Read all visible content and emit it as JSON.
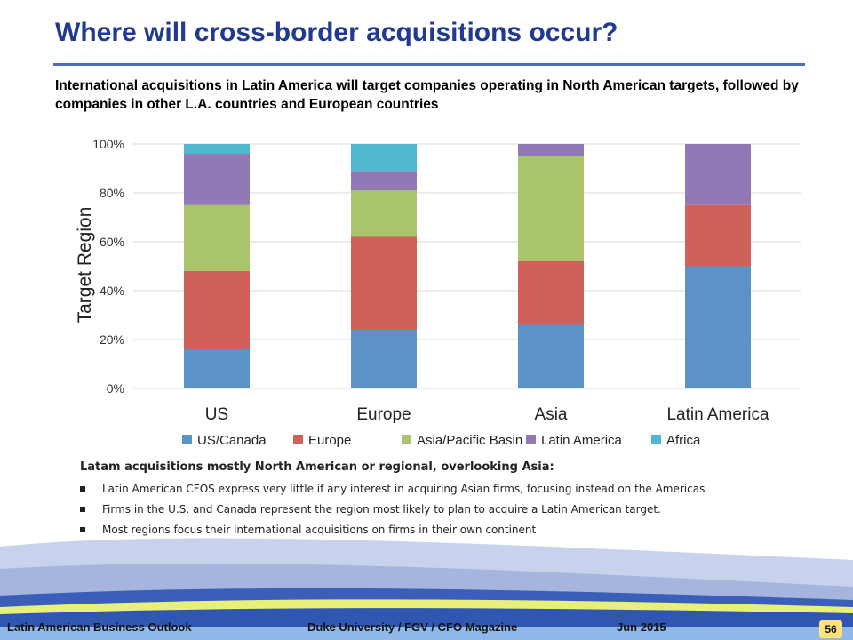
{
  "slide": {
    "title": "Where will cross-border acquisitions occur?",
    "subtitle": "International acquisitions in Latin America will target companies operating in North American targets, followed by companies in other L.A. countries and European countries"
  },
  "chart_data": {
    "type": "bar",
    "stacked": true,
    "percent_axis": true,
    "ylabel": "Target Region",
    "ylim": [
      0,
      100
    ],
    "yticks": [
      "0%",
      "20%",
      "40%",
      "60%",
      "80%",
      "100%"
    ],
    "grid": true,
    "legend_position": "bottom",
    "categories": [
      "US",
      "Europe",
      "Asia",
      "Latin America"
    ],
    "series": [
      {
        "name": "US/Canada",
        "color": "#5b93c9",
        "values": [
          16,
          24,
          26,
          50
        ]
      },
      {
        "name": "Europe",
        "color": "#d0605a",
        "values": [
          32,
          38,
          26,
          25
        ]
      },
      {
        "name": "Asia/Pacific Basin",
        "color": "#a9c46a",
        "values": [
          27,
          19,
          43,
          0
        ]
      },
      {
        "name": "Latin America",
        "color": "#9079b4",
        "values": [
          21,
          8,
          5,
          25
        ]
      },
      {
        "name": "Africa",
        "color": "#4fb8cf",
        "values": [
          4,
          11,
          0,
          0
        ]
      }
    ]
  },
  "notes": {
    "heading": "Latam acquisitions mostly North American or regional, overlooking Asia:",
    "bullets": [
      "Latin American CFOS express very little if any interest in acquiring Asian firms, focusing instead on the Americas",
      "Firms in the U.S. and Canada represent the region most likely to plan to acquire a Latin American target.",
      "Most regions focus their international acquisitions on firms in their own continent"
    ]
  },
  "footer": {
    "left": "Latin American Business Outlook",
    "center": "Duke University / FGV / CFO Magazine",
    "date": "Jun 2015",
    "page_number": "56"
  }
}
